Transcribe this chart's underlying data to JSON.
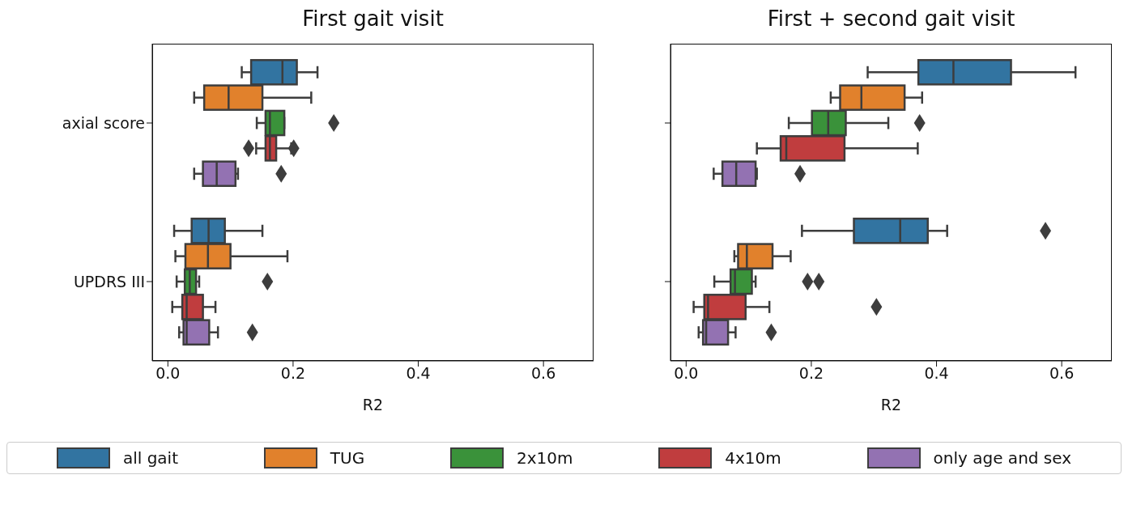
{
  "chart_data": [
    {
      "type": "box",
      "orientation": "horizontal",
      "title": "First gait visit",
      "xlabel": "R2",
      "categories": [
        "axial score",
        "UPDRS III"
      ],
      "xlim": [
        -0.025,
        0.68
      ],
      "xticks": [
        {
          "value": 0,
          "label": "0.0"
        },
        {
          "value": 0.2,
          "label": "0.2"
        },
        {
          "value": 0.4,
          "label": "0.4"
        },
        {
          "value": 0.6,
          "label": "0.6"
        }
      ],
      "legend": "bottom",
      "series": [
        {
          "name": "all gait",
          "color": "#3274a1",
          "boxes": [
            {
              "low": 0.118,
              "q1": 0.133,
              "median": 0.183,
              "q3": 0.206,
              "high": 0.239
            },
            {
              "low": 0.01,
              "q1": 0.038,
              "median": 0.065,
              "q3": 0.091,
              "high": 0.151
            }
          ]
        },
        {
          "name": "TUG",
          "color": "#e1812c",
          "boxes": [
            {
              "low": 0.042,
              "q1": 0.058,
              "median": 0.097,
              "q3": 0.151,
              "high": 0.229
            },
            {
              "low": 0.012,
              "q1": 0.028,
              "median": 0.064,
              "q3": 0.1,
              "high": 0.191
            }
          ]
        },
        {
          "name": "2x10m",
          "color": "#3a923a",
          "boxes": [
            {
              "low": 0.142,
              "q1": 0.156,
              "median": 0.163,
              "q3": 0.186,
              "high": 0.186,
              "outliers": [
                0.265
              ]
            },
            {
              "low": 0.014,
              "q1": 0.027,
              "median": 0.035,
              "q3": 0.045,
              "high": 0.05,
              "outliers": [
                0.159
              ]
            }
          ]
        },
        {
          "name": "4x10m",
          "color": "#c03d3e",
          "boxes": [
            {
              "low": 0.141,
              "q1": 0.156,
              "median": 0.163,
              "q3": 0.173,
              "high": 0.197,
              "outliers": [
                0.129,
                0.201
              ]
            },
            {
              "low": 0.007,
              "q1": 0.023,
              "median": 0.03,
              "q3": 0.056,
              "high": 0.076
            }
          ]
        },
        {
          "name": "only age and sex",
          "color": "#9372b2",
          "boxes": [
            {
              "low": 0.042,
              "q1": 0.056,
              "median": 0.078,
              "q3": 0.108,
              "high": 0.112,
              "outliers": [
                0.181
              ]
            },
            {
              "low": 0.018,
              "q1": 0.025,
              "median": 0.03,
              "q3": 0.066,
              "high": 0.08,
              "outliers": [
                0.135
              ]
            }
          ]
        }
      ]
    },
    {
      "type": "box",
      "orientation": "horizontal",
      "title": "First + second gait visit",
      "xlabel": "R2",
      "categories": [
        null,
        null
      ],
      "tick_labels": "x",
      "xlim": [
        -0.025,
        0.68
      ],
      "xticks": [
        {
          "value": 0,
          "label": "0.0"
        },
        {
          "value": 0.2,
          "label": "0.2"
        },
        {
          "value": 0.4,
          "label": "0.4"
        },
        {
          "value": 0.6,
          "label": "0.6"
        }
      ],
      "series": [
        {
          "color": "#3274a1",
          "boxes": [
            {
              "low": 0.29,
              "q1": 0.371,
              "median": 0.427,
              "q3": 0.519,
              "high": 0.622
            },
            {
              "low": 0.185,
              "q1": 0.268,
              "median": 0.342,
              "q3": 0.386,
              "high": 0.417,
              "outliers": [
                0.574
              ]
            }
          ]
        },
        {
          "color": "#e1812c",
          "boxes": [
            {
              "low": 0.231,
              "q1": 0.246,
              "median": 0.28,
              "q3": 0.349,
              "high": 0.377
            },
            {
              "low": 0.077,
              "q1": 0.083,
              "median": 0.097,
              "q3": 0.138,
              "high": 0.167
            }
          ]
        },
        {
          "color": "#3a923a",
          "boxes": [
            {
              "low": 0.164,
              "q1": 0.201,
              "median": 0.227,
              "q3": 0.255,
              "high": 0.323,
              "outliers": [
                0.373
              ]
            },
            {
              "low": 0.045,
              "q1": 0.071,
              "median": 0.078,
              "q3": 0.105,
              "high": 0.111,
              "outliers": [
                0.194,
                0.212
              ]
            }
          ]
        },
        {
          "color": "#c03d3e",
          "boxes": [
            {
              "low": 0.113,
              "q1": 0.151,
              "median": 0.16,
              "q3": 0.253,
              "high": 0.37
            },
            {
              "low": 0.012,
              "q1": 0.029,
              "median": 0.035,
              "q3": 0.095,
              "high": 0.133,
              "outliers": [
                0.304
              ]
            }
          ]
        },
        {
          "color": "#9372b2",
          "boxes": [
            {
              "low": 0.044,
              "q1": 0.058,
              "median": 0.08,
              "q3": 0.111,
              "high": 0.113,
              "outliers": [
                0.182
              ]
            },
            {
              "low": 0.02,
              "q1": 0.027,
              "median": 0.032,
              "q3": 0.067,
              "high": 0.079,
              "outliers": [
                0.136
              ]
            }
          ]
        }
      ]
    }
  ]
}
